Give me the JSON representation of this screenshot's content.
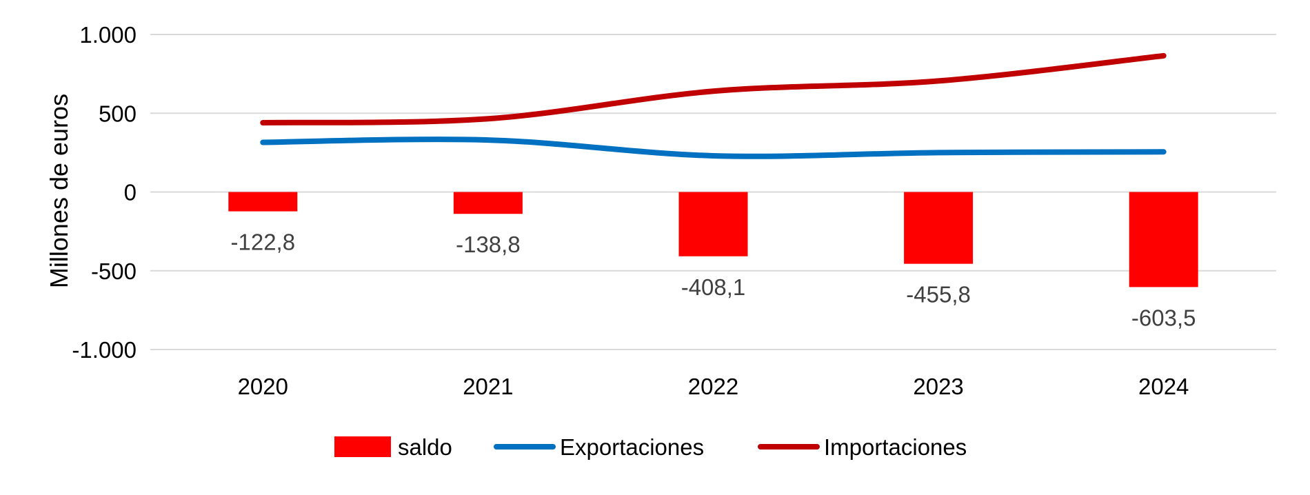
{
  "chart_data": {
    "type": "bar",
    "title": "",
    "xlabel": "",
    "ylabel": "Millones de euros",
    "categories": [
      "2020",
      "2021",
      "2022",
      "2023",
      "2024"
    ],
    "ylim": [
      -1000,
      1000
    ],
    "yticks": [
      1000,
      500,
      0,
      -500,
      -1000
    ],
    "ytick_labels": [
      "1.000",
      "500",
      "0",
      "-500",
      "-1.000"
    ],
    "grid": true,
    "legend_position": "bottom",
    "series": [
      {
        "name": "saldo",
        "type": "bar",
        "color": "#ff0000",
        "values": [
          -122.8,
          -138.8,
          -408.1,
          -455.8,
          -603.5
        ],
        "data_labels": [
          "-122,8",
          "-138,8",
          "-408,1",
          "-455,8",
          "-603,5"
        ]
      },
      {
        "name": "Exportaciones",
        "type": "line",
        "color": "#0070c0",
        "values": [
          315,
          330,
          230,
          250,
          255
        ]
      },
      {
        "name": "Importaciones",
        "type": "line",
        "color": "#c00000",
        "values": [
          440,
          465,
          640,
          705,
          865
        ]
      }
    ]
  }
}
